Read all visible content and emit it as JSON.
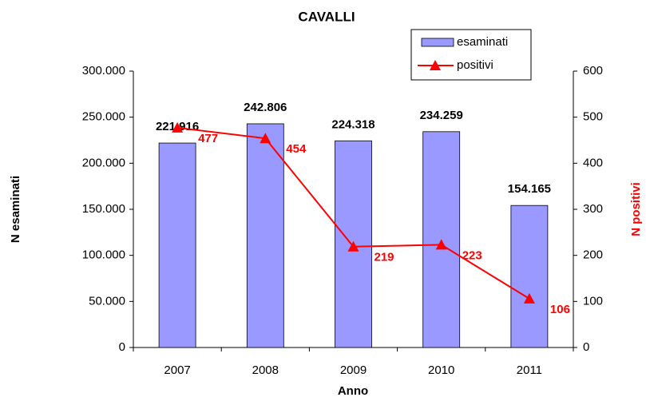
{
  "chart_data": {
    "type": "bar",
    "title": "CAVALLI",
    "x_label": "Anno",
    "y_label": "N esaminati",
    "y2_label": "N positivi",
    "categories": [
      "2007",
      "2008",
      "2009",
      "2010",
      "2011"
    ],
    "series": [
      {
        "name": "esaminati",
        "type": "bar",
        "color": "#9999ff",
        "values": [
          221916,
          242806,
          224318,
          234259,
          154165
        ],
        "value_labels": [
          "221.916",
          "242.806",
          "224.318",
          "234.259",
          "154.165"
        ]
      },
      {
        "name": "positivi",
        "type": "line",
        "color": "#ff0000",
        "axis": "y2",
        "values": [
          477,
          454,
          219,
          223,
          106
        ]
      }
    ],
    "ylim": [
      0,
      300000
    ],
    "yticks": [
      0,
      {
        "value": 50000,
        "label": "50.000"
      },
      {
        "value": 100000,
        "label": "100.000"
      },
      {
        "value": 150000,
        "label": "150.000"
      },
      {
        "value": 200000,
        "label": "200.000"
      },
      {
        "value": 250000,
        "label": "250.000"
      },
      {
        "value": 300000,
        "label": "300.000"
      }
    ],
    "y2lim": [
      0,
      600
    ],
    "y2ticks": [
      0,
      100,
      200,
      300,
      400,
      500,
      600
    ],
    "legend": "top-right"
  }
}
